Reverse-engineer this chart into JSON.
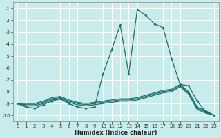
{
  "xlabel": "Humidex (Indice chaleur)",
  "background_color": "#c8ecec",
  "grid_color": "#ffffff",
  "line_color": "#1a6b6b",
  "xlim": [
    -0.5,
    23.5
  ],
  "ylim": [
    -10.5,
    -0.5
  ],
  "yticks": [
    -10,
    -9,
    -8,
    -7,
    -6,
    -5,
    -4,
    -3,
    -2,
    -1
  ],
  "xticks": [
    0,
    1,
    2,
    3,
    4,
    5,
    6,
    7,
    8,
    9,
    10,
    11,
    12,
    13,
    14,
    15,
    16,
    17,
    18,
    19,
    20,
    21,
    22,
    23
  ],
  "lines": [
    {
      "x": [
        0,
        1,
        2,
        3,
        4,
        5,
        6,
        7,
        8,
        9,
        10,
        11,
        12,
        13,
        14,
        15,
        16,
        17,
        18,
        19,
        20,
        21,
        22,
        23
      ],
      "y": [
        -9.0,
        -9.3,
        -9.4,
        -9.1,
        -8.8,
        -8.6,
        -9.0,
        -9.3,
        -9.4,
        -9.3,
        -6.5,
        -4.5,
        -2.4,
        -6.5,
        -1.1,
        -1.6,
        -2.3,
        -2.6,
        -5.2,
        -7.4,
        -7.5,
        -8.8,
        -9.7,
        -10.0
      ],
      "marker": true
    },
    {
      "x": [
        0,
        1,
        2,
        3,
        4,
        5,
        6,
        7,
        8,
        9,
        10,
        11,
        12,
        13,
        14,
        15,
        16,
        17,
        18,
        19,
        20,
        21,
        22,
        23
      ],
      "y": [
        -9.0,
        -9.2,
        -9.2,
        -9.0,
        -8.7,
        -8.6,
        -8.9,
        -9.1,
        -9.2,
        -9.1,
        -9.0,
        -8.9,
        -8.8,
        -8.8,
        -8.7,
        -8.5,
        -8.3,
        -8.1,
        -8.0,
        -7.6,
        -8.2,
        -9.5,
        -9.8,
        -10.0
      ],
      "marker": false
    },
    {
      "x": [
        0,
        1,
        2,
        3,
        4,
        5,
        6,
        7,
        8,
        9,
        10,
        11,
        12,
        13,
        14,
        15,
        16,
        17,
        18,
        19,
        20,
        21,
        22,
        23
      ],
      "y": [
        -9.0,
        -9.1,
        -9.1,
        -8.9,
        -8.6,
        -8.5,
        -8.8,
        -9.0,
        -9.1,
        -9.0,
        -8.9,
        -8.8,
        -8.7,
        -8.7,
        -8.6,
        -8.4,
        -8.2,
        -8.0,
        -7.9,
        -7.5,
        -8.1,
        -9.4,
        -9.7,
        -10.0
      ],
      "marker": false
    },
    {
      "x": [
        0,
        1,
        2,
        3,
        4,
        5,
        6,
        7,
        8,
        9,
        10,
        11,
        12,
        13,
        14,
        15,
        16,
        17,
        18,
        19,
        20,
        21,
        22,
        23
      ],
      "y": [
        -9.0,
        -9.0,
        -9.0,
        -8.8,
        -8.5,
        -8.4,
        -8.7,
        -8.9,
        -9.0,
        -8.9,
        -8.8,
        -8.7,
        -8.6,
        -8.6,
        -8.5,
        -8.3,
        -8.1,
        -7.9,
        -7.8,
        -7.4,
        -8.0,
        -9.3,
        -9.6,
        -10.0
      ],
      "marker": false
    }
  ]
}
